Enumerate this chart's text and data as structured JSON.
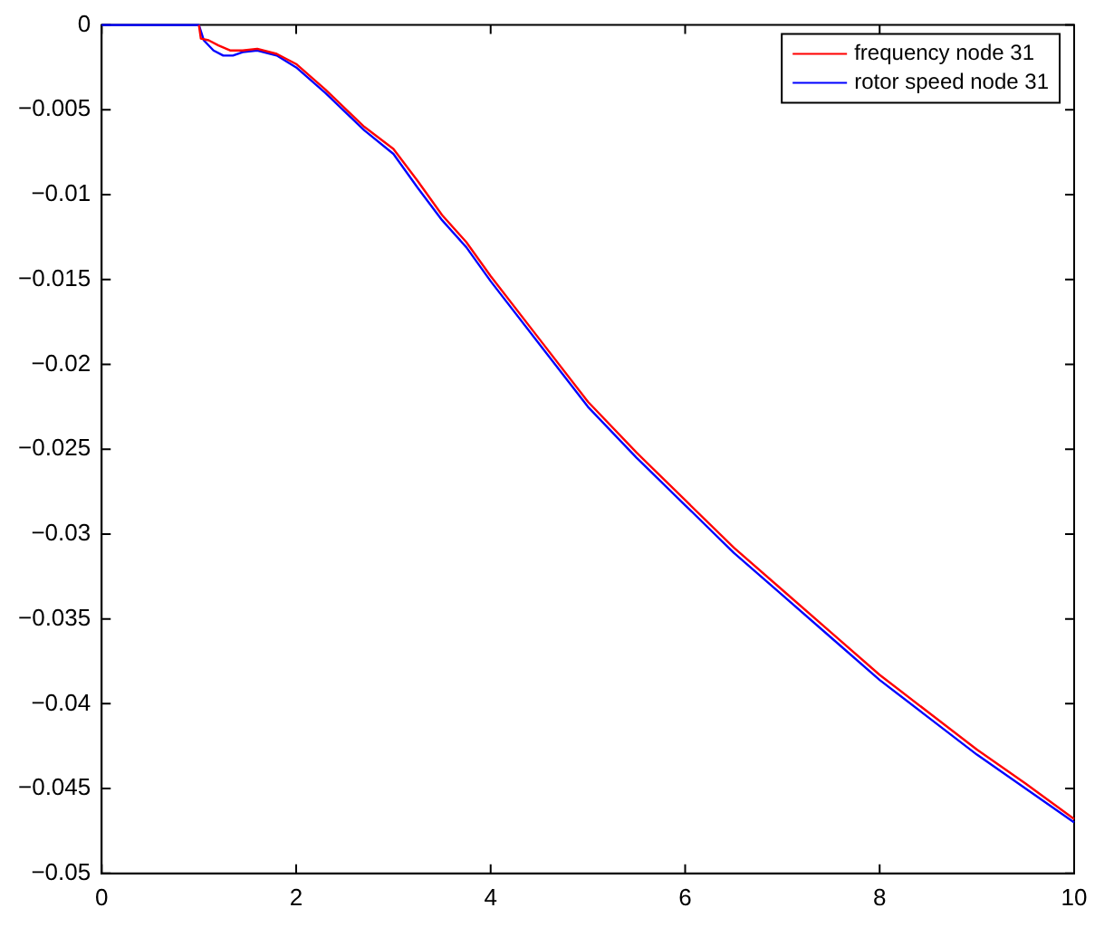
{
  "chart_data": {
    "type": "line",
    "xlim": [
      0,
      10
    ],
    "xticks": [
      0,
      2,
      4,
      6,
      8,
      10
    ],
    "ylim": [
      -0.05,
      0
    ],
    "yticks": [
      -0.05,
      -0.045,
      -0.04,
      -0.035,
      -0.03,
      -0.025,
      -0.02,
      -0.015,
      -0.01,
      -0.005,
      0
    ],
    "grid": false,
    "legend": "top right",
    "marker": "none",
    "line_style": "solid",
    "series": [
      {
        "name": "frequency node 31",
        "color": "#ff0000",
        "x": [
          1,
          1.02,
          1.1,
          1.2,
          1.32,
          1.45,
          1.6,
          1.8,
          2,
          2.3,
          2.7,
          3,
          3.25,
          3.5,
          3.75,
          4,
          4.5,
          5,
          5.5,
          6,
          6.5,
          7,
          7.5,
          8,
          8.5,
          9,
          9.5,
          10
        ],
        "values": [
          0,
          -0.0008,
          -0.0009,
          -0.0012,
          -0.0015,
          -0.0015,
          -0.0014,
          -0.0017,
          -0.0023,
          -0.0038,
          -0.006,
          -0.0073,
          -0.0092,
          -0.0112,
          -0.0128,
          -0.0148,
          -0.0185,
          -0.0222,
          -0.0252,
          -0.028,
          -0.0308,
          -0.0333,
          -0.0358,
          -0.0383,
          -0.0405,
          -0.0427,
          -0.0447,
          -0.0468
        ]
      },
      {
        "name": "rotor speed node 31",
        "color": "#0000ff",
        "x": [
          0,
          1,
          1.05,
          1.15,
          1.25,
          1.35,
          1.45,
          1.6,
          1.8,
          2,
          2.3,
          2.7,
          3,
          3.25,
          3.5,
          3.75,
          4,
          4.5,
          5,
          5.5,
          6,
          6.5,
          7,
          7.5,
          8,
          8.5,
          9,
          9.5,
          10
        ],
        "values": [
          0,
          0,
          -0.0009,
          -0.0015,
          -0.0018,
          -0.0018,
          -0.0016,
          -0.0015,
          -0.0018,
          -0.0025,
          -0.004,
          -0.0062,
          -0.0076,
          -0.0096,
          -0.0115,
          -0.0131,
          -0.0151,
          -0.0188,
          -0.0225,
          -0.0255,
          -0.0283,
          -0.0311,
          -0.0336,
          -0.0361,
          -0.0386,
          -0.0408,
          -0.043,
          -0.045,
          -0.047
        ]
      }
    ]
  }
}
